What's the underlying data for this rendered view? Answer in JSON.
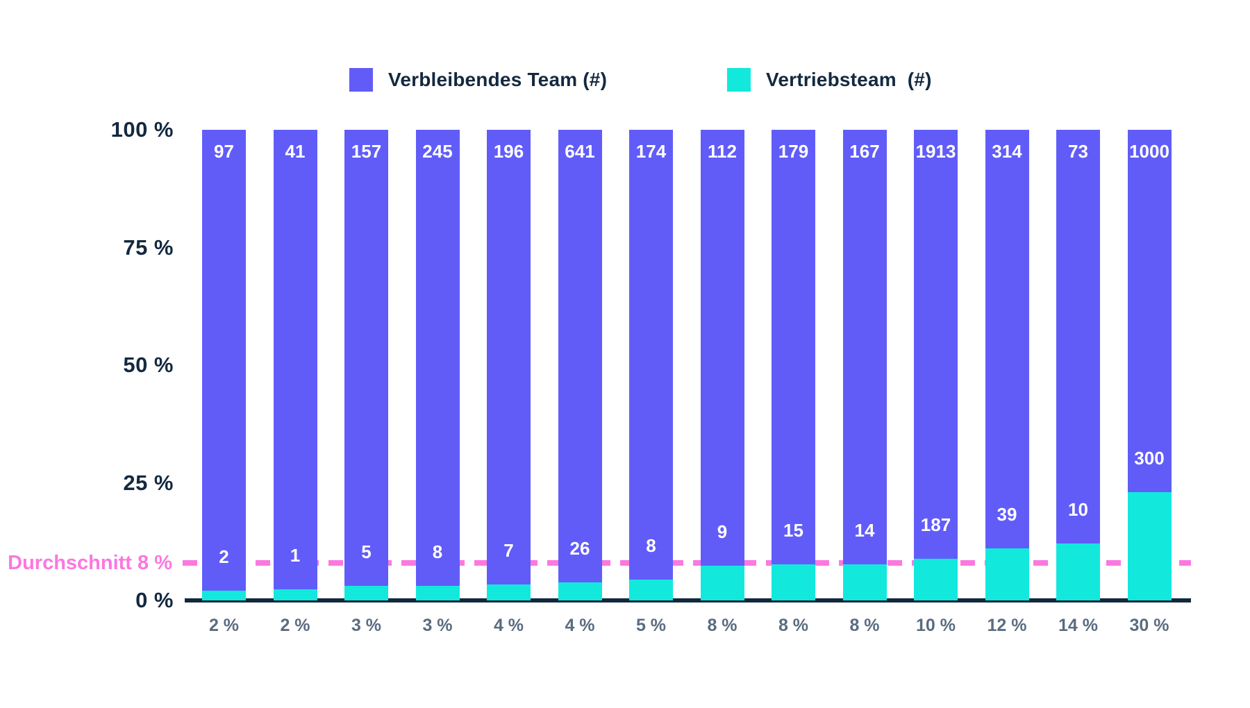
{
  "page": {
    "background": "#FFFFFF"
  },
  "legend": {
    "items": [
      {
        "label": "Verbleibendes Team (#)",
        "series": "remaining",
        "color": "#615CF8"
      },
      {
        "label": "Vertriebsteam  (#)",
        "series": "sales",
        "color": "#13E8DD"
      }
    ]
  },
  "average_line": {
    "label": "Durchschnitt 8 %",
    "value_percent": 8,
    "color": "#FB78DF"
  },
  "axis": {
    "color": "#12283E",
    "y_tick_color": "#13293F",
    "x_tick_color": "#5A6C80"
  },
  "chart_data": {
    "type": "bar",
    "stacked": true,
    "normalized_to_percent": true,
    "grid": false,
    "legend_position": "top",
    "categories": [
      "2 %",
      "2 %",
      "3 %",
      "3 %",
      "4 %",
      "4 %",
      "5 %",
      "8 %",
      "8 %",
      "8 %",
      "10 %",
      "12 %",
      "14 %",
      "30 %"
    ],
    "series": [
      {
        "name": "Verbleibendes Team (#)",
        "color": "#615CF8",
        "values": [
          97,
          41,
          157,
          245,
          196,
          641,
          174,
          112,
          179,
          167,
          1913,
          314,
          73,
          1000
        ]
      },
      {
        "name": "Vertriebsteam (#)",
        "color": "#13E8DD",
        "values": [
          2,
          1,
          5,
          8,
          7,
          26,
          8,
          9,
          15,
          14,
          187,
          39,
          10,
          300
        ]
      }
    ],
    "y_axis": {
      "ylim": [
        0,
        100
      ],
      "ticks": [
        {
          "label": "100 %",
          "value": 100
        },
        {
          "label": "75 %",
          "value": 75
        },
        {
          "label": "50 %",
          "value": 50
        },
        {
          "label": "25 %",
          "value": 25
        },
        {
          "label": "0 %",
          "value": 0
        }
      ]
    },
    "annotation_line": {
      "label": "Durchschnitt 8 %",
      "value_percent": 8
    }
  }
}
